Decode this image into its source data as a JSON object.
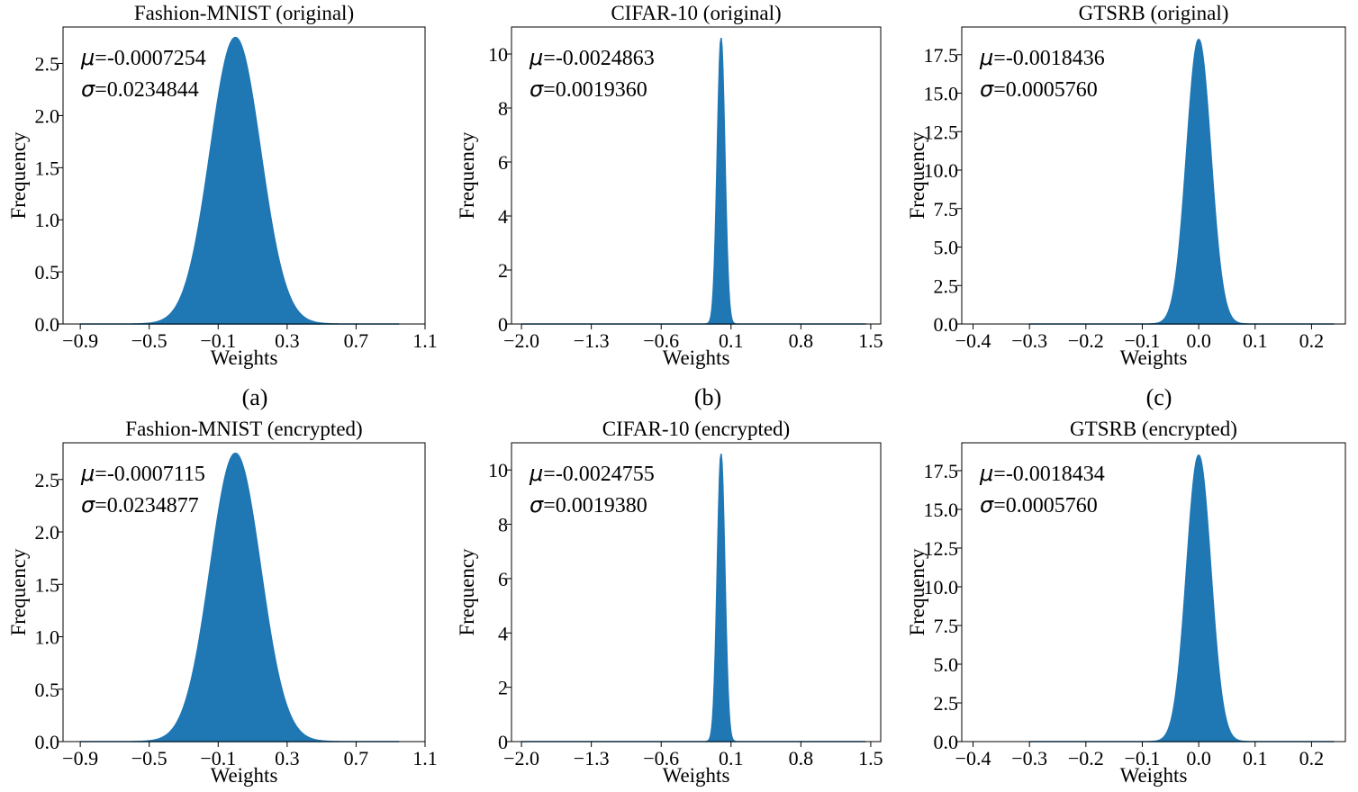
{
  "figure": {
    "subfigure_labels": [
      "(a)",
      "(b)",
      "(c)"
    ]
  },
  "chart_data": [
    {
      "type": "area",
      "title": "Fashion-MNIST (original)",
      "xlabel": "Weights",
      "ylabel": "Frequency",
      "xlim": [
        -1.0,
        1.1
      ],
      "ylim": [
        0,
        2.85
      ],
      "xticks": [
        -0.9,
        -0.5,
        -0.1,
        0.3,
        0.7,
        1.1
      ],
      "xtick_labels": [
        "−0.9",
        "−0.5",
        "−0.1",
        "0.3",
        "0.7",
        "1.1"
      ],
      "yticks": [
        0.0,
        0.5,
        1.0,
        1.5,
        2.0,
        2.5
      ],
      "ytick_labels": [
        "0.0",
        "0.5",
        "1.0",
        "1.5",
        "2.0",
        "2.5"
      ],
      "annotation": {
        "mu_label": "μ",
        "mu_value": "=-0.0007254",
        "sigma_label": "σ",
        "sigma_value": "=0.0234844"
      },
      "series": [
        {
          "mean": 0.0,
          "std": 0.146,
          "peak": 2.75,
          "x_min": -0.9,
          "x_max": 0.95,
          "color": "#1f77b4"
        }
      ]
    },
    {
      "type": "area",
      "title": "CIFAR-10 (original)",
      "xlabel": "Weights",
      "ylabel": "Frequency",
      "xlim": [
        -2.1,
        1.6
      ],
      "ylim": [
        0,
        11.0
      ],
      "xticks": [
        -2.0,
        -1.3,
        -0.6,
        0.1,
        0.8,
        1.5
      ],
      "xtick_labels": [
        "−2.0",
        "−1.3",
        "−0.6",
        "0.1",
        "0.8",
        "1.5"
      ],
      "yticks": [
        0,
        2,
        4,
        6,
        8,
        10
      ],
      "ytick_labels": [
        "0",
        "2",
        "4",
        "6",
        "8",
        "10"
      ],
      "annotation": {
        "mu_label": "μ",
        "mu_value": "=-0.0024863",
        "sigma_label": "σ",
        "sigma_value": "=0.0019360"
      },
      "series": [
        {
          "mean": 0.0,
          "std": 0.038,
          "peak": 10.6,
          "x_min": -2.0,
          "x_max": 1.45,
          "color": "#1f77b4"
        }
      ]
    },
    {
      "type": "area",
      "title": "GTSRB (original)",
      "xlabel": "Weights",
      "ylabel": "Frequency",
      "xlim": [
        -0.42,
        0.26
      ],
      "ylim": [
        0,
        19.3
      ],
      "xticks": [
        -0.4,
        -0.3,
        -0.2,
        -0.1,
        0.0,
        0.1,
        0.2
      ],
      "xtick_labels": [
        "−0.4",
        "−0.3",
        "−0.2",
        "−0.1",
        "0.0",
        "0.1",
        "0.2"
      ],
      "yticks": [
        0.0,
        2.5,
        5.0,
        7.5,
        10.0,
        12.5,
        15.0,
        17.5
      ],
      "ytick_labels": [
        "0.0",
        "2.5",
        "5.0",
        "7.5",
        "10.0",
        "12.5",
        "15.0",
        "17.5"
      ],
      "annotation": {
        "mu_label": "μ",
        "mu_value": "=-0.0018436",
        "sigma_label": "σ",
        "sigma_value": "=0.0005760"
      },
      "series": [
        {
          "mean": 0.0,
          "std": 0.0215,
          "peak": 18.5,
          "x_min": -0.3,
          "x_max": 0.24,
          "color": "#1f77b4"
        }
      ]
    },
    {
      "type": "area",
      "title": "Fashion-MNIST (encrypted)",
      "xlabel": "Weights",
      "ylabel": "Frequency",
      "xlim": [
        -1.0,
        1.1
      ],
      "ylim": [
        0,
        2.85
      ],
      "xticks": [
        -0.9,
        -0.5,
        -0.1,
        0.3,
        0.7,
        1.1
      ],
      "xtick_labels": [
        "−0.9",
        "−0.5",
        "−0.1",
        "0.3",
        "0.7",
        "1.1"
      ],
      "yticks": [
        0.0,
        0.5,
        1.0,
        1.5,
        2.0,
        2.5
      ],
      "ytick_labels": [
        "0.0",
        "0.5",
        "1.0",
        "1.5",
        "2.0",
        "2.5"
      ],
      "annotation": {
        "mu_label": "μ",
        "mu_value": "=-0.0007115",
        "sigma_label": "σ",
        "sigma_value": "=0.0234877"
      },
      "series": [
        {
          "mean": 0.0,
          "std": 0.146,
          "peak": 2.75,
          "x_min": -0.9,
          "x_max": 0.95,
          "color": "#1f77b4"
        }
      ]
    },
    {
      "type": "area",
      "title": "CIFAR-10 (encrypted)",
      "xlabel": "Weights",
      "ylabel": "Frequency",
      "xlim": [
        -2.1,
        1.6
      ],
      "ylim": [
        0,
        11.0
      ],
      "xticks": [
        -2.0,
        -1.3,
        -0.6,
        0.1,
        0.8,
        1.5
      ],
      "xtick_labels": [
        "−2.0",
        "−1.3",
        "−0.6",
        "0.1",
        "0.8",
        "1.5"
      ],
      "yticks": [
        0,
        2,
        4,
        6,
        8,
        10
      ],
      "ytick_labels": [
        "0",
        "2",
        "4",
        "6",
        "8",
        "10"
      ],
      "annotation": {
        "mu_label": "μ",
        "mu_value": "=-0.0024755",
        "sigma_label": "σ",
        "sigma_value": "=0.0019380"
      },
      "series": [
        {
          "mean": 0.0,
          "std": 0.038,
          "peak": 10.6,
          "x_min": -2.0,
          "x_max": 1.45,
          "color": "#1f77b4"
        }
      ]
    },
    {
      "type": "area",
      "title": "GTSRB (encrypted)",
      "xlabel": "Weights",
      "ylabel": "Frequency",
      "xlim": [
        -0.42,
        0.26
      ],
      "ylim": [
        0,
        19.3
      ],
      "xticks": [
        -0.4,
        -0.3,
        -0.2,
        -0.1,
        0.0,
        0.1,
        0.2
      ],
      "xtick_labels": [
        "−0.4",
        "−0.3",
        "−0.2",
        "−0.1",
        "0.0",
        "0.1",
        "0.2"
      ],
      "yticks": [
        0.0,
        2.5,
        5.0,
        7.5,
        10.0,
        12.5,
        15.0,
        17.5
      ],
      "ytick_labels": [
        "0.0",
        "2.5",
        "5.0",
        "7.5",
        "10.0",
        "12.5",
        "15.0",
        "17.5"
      ],
      "annotation": {
        "mu_label": "μ",
        "mu_value": "=-0.0018434",
        "sigma_label": "σ",
        "sigma_value": "=0.0005760"
      },
      "series": [
        {
          "mean": 0.0,
          "std": 0.0215,
          "peak": 18.5,
          "x_min": -0.3,
          "x_max": 0.24,
          "color": "#1f77b4"
        }
      ]
    }
  ]
}
